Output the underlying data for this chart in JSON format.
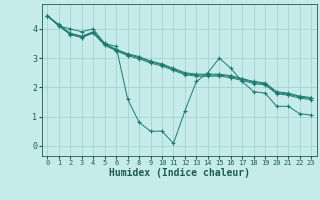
{
  "xlabel": "Humidex (Indice chaleur)",
  "background_color": "#c5ecea",
  "grid_color": "#9dcfcc",
  "line_color": "#1e7a70",
  "xlim": [
    -0.5,
    23.5
  ],
  "ylim": [
    -0.35,
    4.85
  ],
  "yticks": [
    0,
    1,
    2,
    3,
    4
  ],
  "xticks": [
    0,
    1,
    2,
    3,
    4,
    5,
    6,
    7,
    8,
    9,
    10,
    11,
    12,
    13,
    14,
    15,
    16,
    17,
    18,
    19,
    20,
    21,
    22,
    23
  ],
  "lines": [
    [
      4.45,
      4.1,
      4.0,
      3.9,
      4.0,
      3.5,
      3.4,
      1.6,
      0.8,
      0.5,
      0.5,
      0.08,
      1.2,
      2.2,
      2.5,
      3.0,
      2.65,
      2.2,
      1.85,
      1.8,
      1.35,
      1.35,
      1.1,
      1.05
    ],
    [
      4.45,
      4.15,
      3.85,
      3.75,
      3.9,
      3.5,
      3.3,
      3.15,
      3.05,
      2.9,
      2.8,
      2.65,
      2.5,
      2.45,
      2.45,
      2.45,
      2.4,
      2.3,
      2.2,
      2.15,
      1.85,
      1.8,
      1.7,
      1.65
    ],
    [
      4.45,
      4.12,
      3.83,
      3.73,
      3.88,
      3.47,
      3.28,
      3.12,
      3.02,
      2.87,
      2.77,
      2.62,
      2.47,
      2.42,
      2.42,
      2.42,
      2.37,
      2.27,
      2.17,
      2.12,
      1.82,
      1.77,
      1.67,
      1.62
    ],
    [
      4.45,
      4.1,
      3.8,
      3.7,
      3.85,
      3.44,
      3.25,
      3.08,
      2.98,
      2.83,
      2.73,
      2.58,
      2.43,
      2.38,
      2.38,
      2.38,
      2.33,
      2.23,
      2.13,
      2.08,
      1.78,
      1.73,
      1.63,
      1.58
    ]
  ],
  "tick_color": "#1e5a52",
  "xlabel_fontsize": 7,
  "xtick_fontsize": 5,
  "ytick_fontsize": 6
}
